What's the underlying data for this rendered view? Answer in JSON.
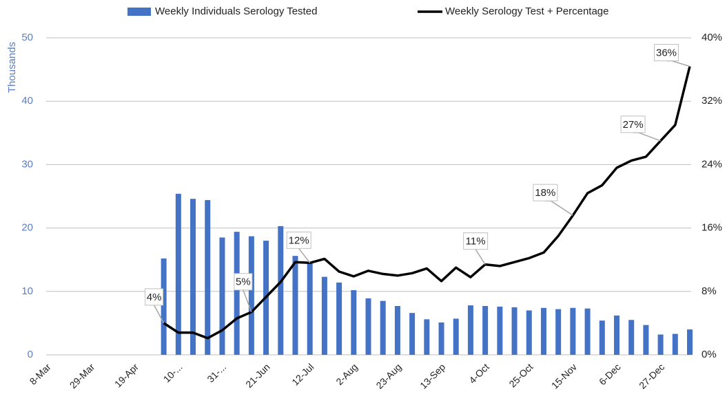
{
  "chart_data": {
    "type": "bar",
    "y_label": "Thousands",
    "categories": [
      "8-Mar",
      null,
      null,
      "29-Mar",
      null,
      null,
      "19-Apr",
      null,
      null,
      "10-...",
      null,
      null,
      "31-...",
      null,
      null,
      "21-Jun",
      null,
      null,
      "12-Jul",
      null,
      null,
      "2-Aug",
      null,
      null,
      "23-Aug",
      null,
      null,
      "13-Sep",
      null,
      null,
      "4-Oct",
      null,
      null,
      "25-Oct",
      null,
      null,
      "15-Nov",
      null,
      null,
      "6-Dec",
      null,
      null,
      "27-Dec",
      null,
      null
    ],
    "series": [
      {
        "name": "Weekly Individuals Serology Tested",
        "type": "bar",
        "color": "#4472c4",
        "values": [
          null,
          null,
          null,
          null,
          null,
          null,
          null,
          null,
          15.2,
          25.4,
          24.6,
          24.4,
          18.5,
          19.4,
          18.7,
          18.0,
          20.3,
          15.6,
          14.6,
          12.3,
          11.4,
          10.2,
          8.9,
          8.5,
          7.7,
          6.6,
          5.6,
          5.1,
          5.7,
          7.8,
          7.7,
          7.6,
          7.5,
          7.0,
          7.4,
          7.2,
          7.4,
          7.3,
          5.4,
          6.2,
          5.5,
          4.7,
          3.2,
          3.3,
          4.0
        ]
      },
      {
        "name": "Weekly Serology Test + Percentage",
        "type": "line",
        "axis": "y2",
        "color": "#000000",
        "values": [
          null,
          null,
          null,
          null,
          null,
          null,
          null,
          null,
          4.0,
          2.8,
          2.8,
          2.1,
          3.1,
          4.6,
          5.4,
          7.3,
          9.2,
          11.7,
          11.6,
          12.1,
          10.5,
          9.9,
          10.6,
          10.2,
          10.0,
          10.3,
          10.9,
          9.3,
          11.0,
          9.8,
          11.4,
          11.2,
          11.7,
          12.2,
          12.9,
          15.0,
          17.6,
          20.4,
          21.4,
          23.6,
          24.5,
          25.0,
          27.0,
          29.0,
          36.4
        ],
        "value_labels": [
          null,
          null,
          null,
          null,
          null,
          null,
          null,
          null,
          "4%",
          null,
          null,
          null,
          null,
          null,
          "5%",
          null,
          null,
          null,
          "12%",
          null,
          null,
          null,
          null,
          null,
          null,
          null,
          null,
          null,
          null,
          null,
          "11%",
          null,
          null,
          null,
          null,
          null,
          "18%",
          null,
          null,
          null,
          null,
          null,
          "27%",
          null,
          "36%"
        ]
      }
    ],
    "ylim": [
      0,
      50
    ],
    "yticks": [
      0,
      10,
      20,
      30,
      40,
      50
    ],
    "y2lim": [
      0,
      40
    ],
    "y2ticks": [
      {
        "value": 0,
        "label": "0%"
      },
      {
        "value": 8,
        "label": "8%"
      },
      {
        "value": 16,
        "label": "16%"
      },
      {
        "value": 24,
        "label": "24%"
      },
      {
        "value": 32,
        "label": "32%"
      },
      {
        "value": 40,
        "label": "40%"
      }
    ],
    "grid": true,
    "legend": "top"
  }
}
